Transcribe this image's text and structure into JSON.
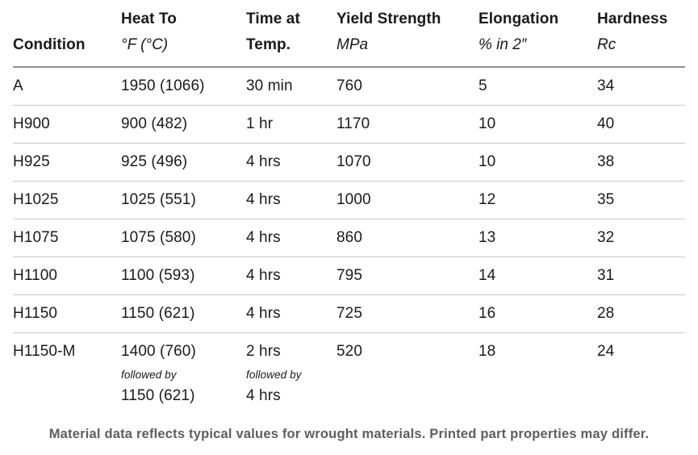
{
  "table": {
    "columns": [
      {
        "label": "Condition",
        "unit": ""
      },
      {
        "label": "Heat To",
        "unit": "°F (°C)"
      },
      {
        "label": "Time at Temp.",
        "unit": ""
      },
      {
        "label": "Yield Strength",
        "unit": "MPa"
      },
      {
        "label": "Elongation",
        "unit": "% in 2″"
      },
      {
        "label": "Hardness",
        "unit": "Rc"
      }
    ],
    "rows": [
      {
        "condition": "A",
        "heat_to": "1950 (1066)",
        "time": "30 min",
        "yield": "760",
        "elongation": "5",
        "hardness": "34"
      },
      {
        "condition": "H900",
        "heat_to": "900 (482)",
        "time": "1 hr",
        "yield": "1170",
        "elongation": "10",
        "hardness": "40"
      },
      {
        "condition": "H925",
        "heat_to": "925 (496)",
        "time": "4 hrs",
        "yield": "1070",
        "elongation": "10",
        "hardness": "38"
      },
      {
        "condition": "H1025",
        "heat_to": "1025 (551)",
        "time": "4 hrs",
        "yield": "1000",
        "elongation": "12",
        "hardness": "35"
      },
      {
        "condition": "H1075",
        "heat_to": "1075 (580)",
        "time": "4 hrs",
        "yield": "860",
        "elongation": "13",
        "hardness": "32"
      },
      {
        "condition": "H1100",
        "heat_to": "1100 (593)",
        "time": "4 hrs",
        "yield": "795",
        "elongation": "14",
        "hardness": "31"
      },
      {
        "condition": "H1150",
        "heat_to": "1150 (621)",
        "time": "4 hrs",
        "yield": "725",
        "elongation": "16",
        "hardness": "28"
      },
      {
        "condition": "H1150-M",
        "heat_to": "1400 (760)",
        "heat_to_note": "followed by",
        "heat_to_2": "1150 (621)",
        "time": "2 hrs",
        "time_note": "followed by",
        "time_2": "4 hrs",
        "yield": "520",
        "elongation": "18",
        "hardness": "24"
      }
    ]
  },
  "footer": {
    "note": "Material data reflects typical values for wrought materials. Printed part properties may differ."
  },
  "chart_data": {
    "type": "table",
    "title": "Heat treatment conditions and typical properties",
    "columns": [
      "Condition",
      "Heat To °F (°C)",
      "Time at Temp.",
      "Yield Strength MPa",
      "Elongation % in 2″",
      "Hardness Rc"
    ],
    "rows": [
      [
        "A",
        "1950 (1066)",
        "30 min",
        760,
        5,
        34
      ],
      [
        "H900",
        "900 (482)",
        "1 hr",
        1170,
        10,
        40
      ],
      [
        "H925",
        "925 (496)",
        "4 hrs",
        1070,
        10,
        38
      ],
      [
        "H1025",
        "1025 (551)",
        "4 hrs",
        1000,
        12,
        35
      ],
      [
        "H1075",
        "1075 (580)",
        "4 hrs",
        860,
        13,
        32
      ],
      [
        "H1100",
        "1100 (593)",
        "4 hrs",
        795,
        14,
        31
      ],
      [
        "H1150",
        "1150 (621)",
        "4 hrs",
        725,
        16,
        28
      ],
      [
        "H1150-M",
        "1400 (760) followed by 1150 (621)",
        "2 hrs followed by 4 hrs",
        520,
        18,
        24
      ]
    ]
  },
  "colors": {
    "background": "#ffffff",
    "text": "#1a1a1a",
    "header_rule": "#8f8f8f",
    "row_rule": "#c7c7c7",
    "footnote_text": "#5e5e5e"
  }
}
